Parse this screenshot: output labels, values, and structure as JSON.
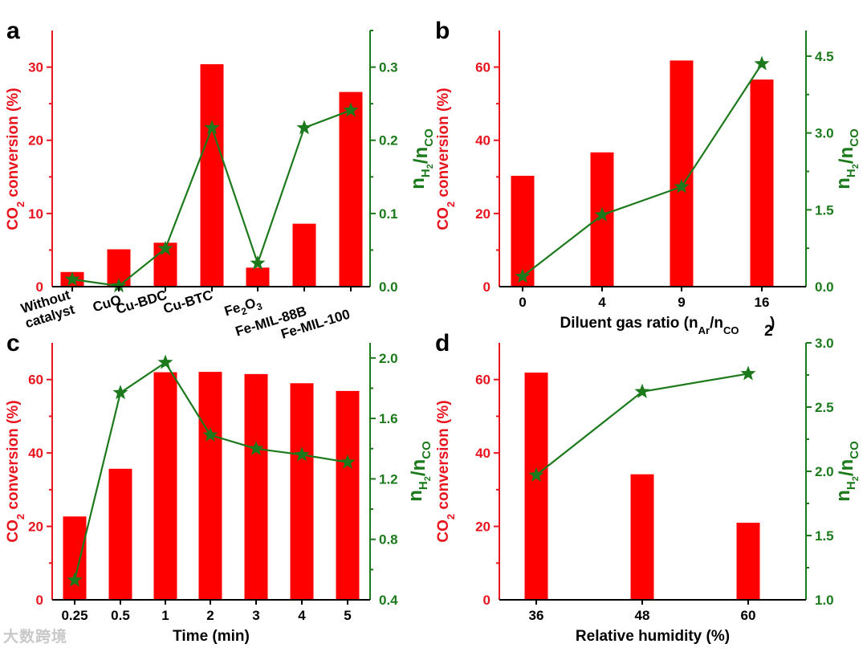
{
  "watermark": "大数跨境",
  "colors": {
    "bar": "#ff0000",
    "line": "#1c7a1c",
    "left_axis": "#e8141e",
    "right_axis": "#1c7a1c",
    "text": "#000000"
  },
  "chart_data": [
    {
      "panel": "a",
      "type": "bar+line",
      "categories": [
        [
          "Without",
          "catalyst"
        ],
        [
          "CuO"
        ],
        [
          "Cu-BDC"
        ],
        [
          "Cu-BTC"
        ],
        [
          "Fe2O3"
        ],
        [
          "Fe-MIL-88B"
        ],
        [
          "Fe-MIL-100"
        ]
      ],
      "bars": {
        "name": "CO2 conversion (%)",
        "values": [
          2.0,
          5.1,
          6.0,
          30.4,
          2.6,
          8.6,
          26.6
        ]
      },
      "line": {
        "name": "nH2/nCO",
        "values": [
          0.01,
          0.001,
          0.052,
          0.217,
          0.032,
          0.217,
          0.241
        ]
      },
      "ylabel": "CO2 conversion (%)",
      "y2label": "nH2/nCO",
      "xlabel": "",
      "ylim": [
        0,
        35
      ],
      "yticks": [
        "0",
        "10",
        "20",
        "30"
      ],
      "ytick_values": [
        0,
        10,
        20,
        30
      ],
      "y2lim": [
        0,
        0.35
      ],
      "y2ticks": [
        "0.0",
        "0.1",
        "0.2",
        "0.3"
      ],
      "y2tick_values": [
        0,
        0.1,
        0.2,
        0.3
      ]
    },
    {
      "panel": "b",
      "type": "bar+line",
      "categories": [
        "0",
        "4",
        "9",
        "16"
      ],
      "bars": {
        "name": "CO2 conversion (%)",
        "values": [
          30.3,
          36.7,
          61.8,
          56.6
        ]
      },
      "line": {
        "name": "nH2/nCO",
        "values": [
          0.2,
          1.4,
          1.95,
          4.35
        ]
      },
      "ylabel": "CO2 conversion (%)",
      "y2label": "nH2/nCO",
      "xlabel": "Diluent gas ratio (nAr/nCO2)",
      "ylim": [
        0,
        70
      ],
      "yticks": [
        "0",
        "20",
        "40",
        "60"
      ],
      "ytick_values": [
        0,
        20,
        40,
        60
      ],
      "y2lim": [
        0,
        5.0
      ],
      "y2ticks": [
        "0.0",
        "1.5",
        "3.0",
        "4.5"
      ],
      "y2tick_values": [
        0,
        1.5,
        3.0,
        4.5
      ]
    },
    {
      "panel": "c",
      "type": "bar+line",
      "categories": [
        "0.25",
        "0.5",
        "1",
        "2",
        "3",
        "4",
        "5"
      ],
      "bars": {
        "name": "CO2 conversion (%)",
        "values": [
          22.7,
          35.7,
          62.0,
          62.1,
          61.5,
          59.0,
          56.9
        ]
      },
      "line": {
        "name": "nH2/nCO",
        "values": [
          0.53,
          1.77,
          1.97,
          1.49,
          1.4,
          1.36,
          1.31
        ]
      },
      "ylabel": "CO2 conversion (%)",
      "y2label": "nH2/nCO",
      "xlabel": "Time (min)",
      "ylim": [
        0,
        70
      ],
      "yticks": [
        "0",
        "20",
        "40",
        "60"
      ],
      "ytick_values": [
        0,
        20,
        40,
        60
      ],
      "y2lim": [
        0.4,
        2.1
      ],
      "y2ticks": [
        "0.4",
        "0.8",
        "1.2",
        "1.6",
        "2.0"
      ],
      "y2tick_values": [
        0.4,
        0.8,
        1.2,
        1.6,
        2.0
      ]
    },
    {
      "panel": "d",
      "type": "bar+line",
      "categories": [
        "36",
        "48",
        "60"
      ],
      "bars": {
        "name": "CO2 conversion (%)",
        "values": [
          61.9,
          34.2,
          21.0
        ]
      },
      "line": {
        "name": "nH2/nCO",
        "values": [
          1.97,
          2.62,
          2.76
        ]
      },
      "ylabel": "CO2 conversion (%)",
      "y2label": "nH2/nCO",
      "xlabel": "Relative humidity (%)",
      "ylim": [
        0,
        70
      ],
      "yticks": [
        "0",
        "20",
        "40",
        "60"
      ],
      "ytick_values": [
        0,
        20,
        40,
        60
      ],
      "y2lim": [
        1.0,
        3.0
      ],
      "y2ticks": [
        "1.0",
        "1.5",
        "2.0",
        "2.5",
        "3.0"
      ],
      "y2tick_values": [
        1.0,
        1.5,
        2.0,
        2.5,
        3.0
      ]
    }
  ]
}
